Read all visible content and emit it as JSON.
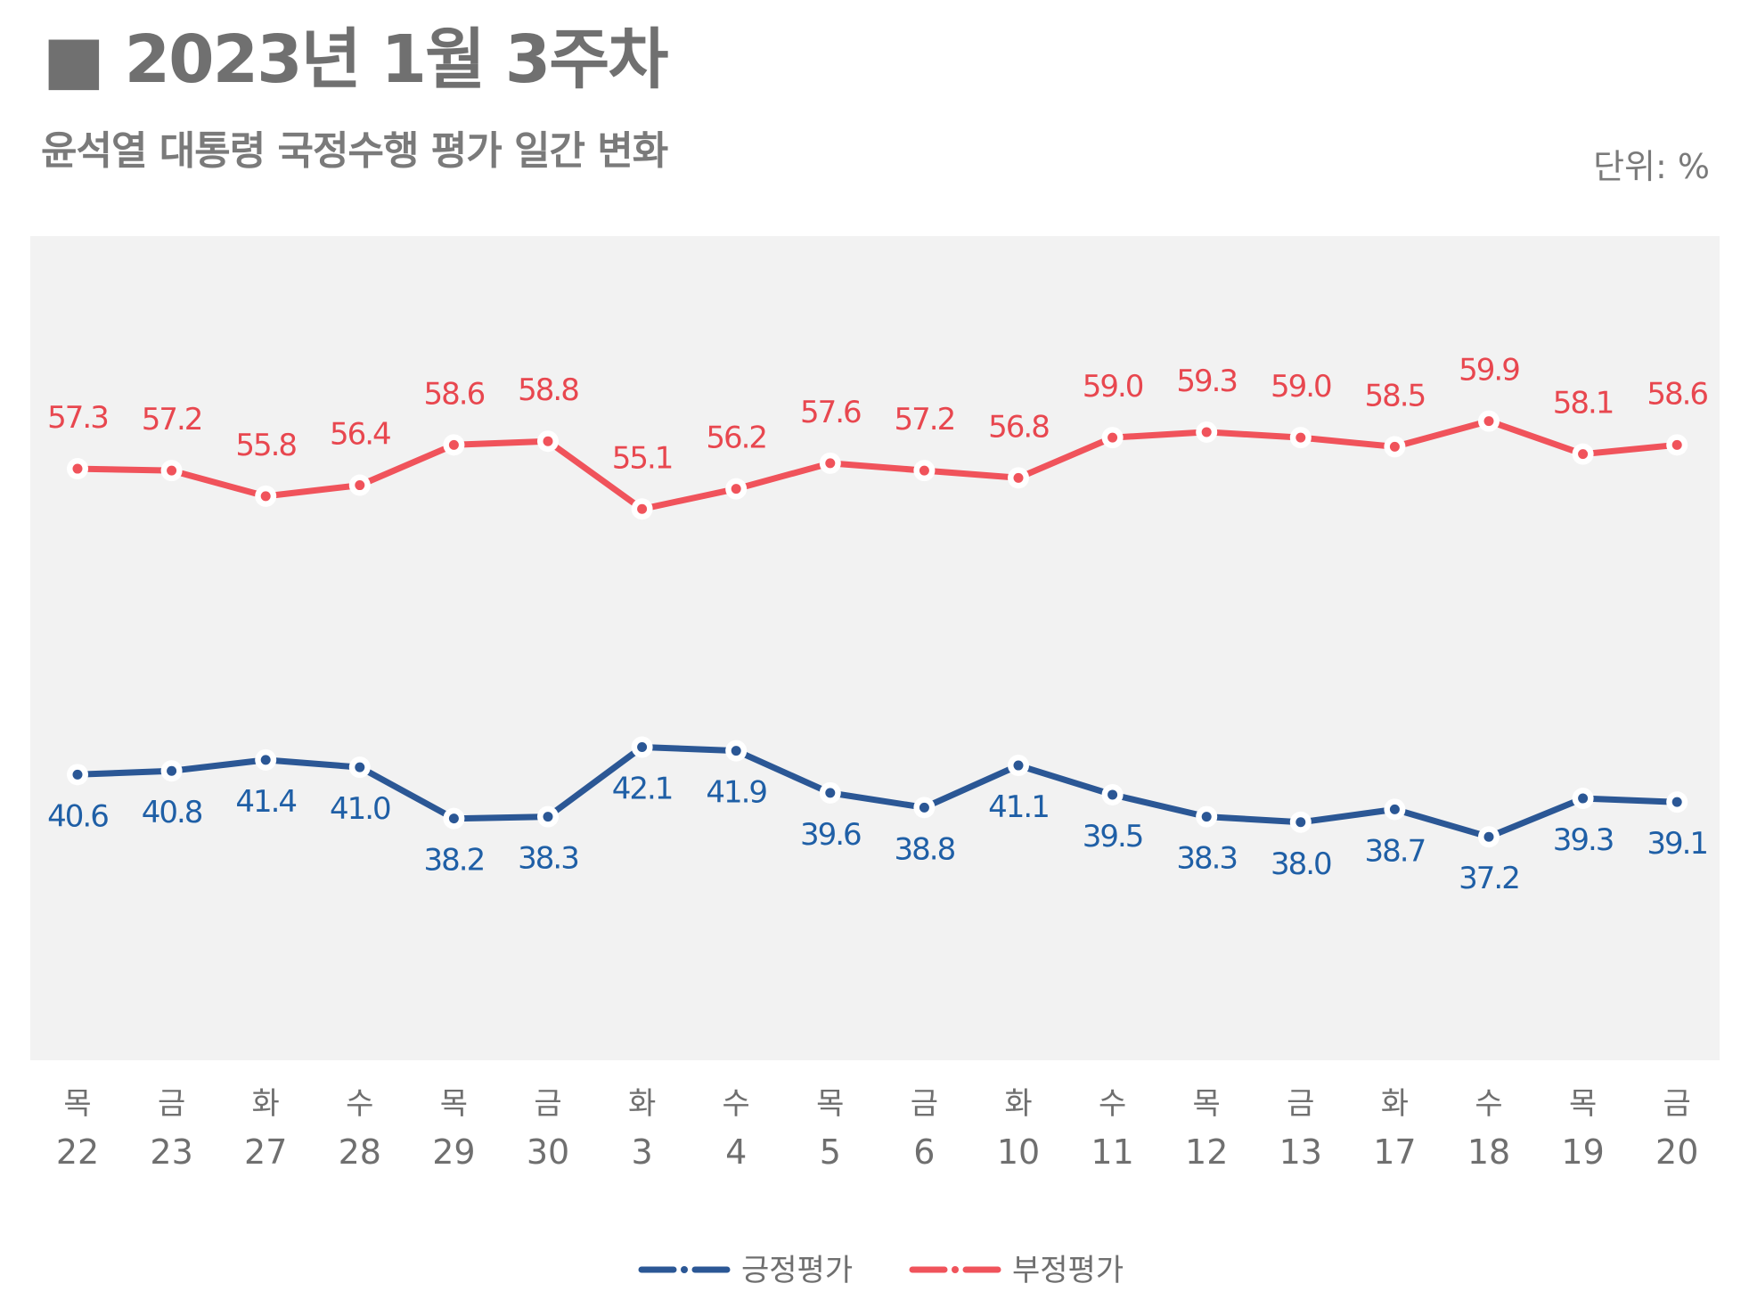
{
  "header": {
    "title": "■ 2023년 1월 3주차",
    "subtitle": "윤석열 대통령 국정수행 평가 일간 변화",
    "unit": "단위: %"
  },
  "colors": {
    "positive": "#2b5795",
    "negative": "#f0535b",
    "positive_label": "#1f5fa6",
    "negative_label": "#e8474f"
  },
  "chart_data": {
    "type": "line",
    "title": "윤석열 대통령 국정수행 평가 일간 변화",
    "ylabel": "단위: %",
    "ylim": [
      25,
      70
    ],
    "grid": false,
    "legend_position": "bottom-center",
    "categories": [
      {
        "day": "목",
        "date": "22"
      },
      {
        "day": "금",
        "date": "23"
      },
      {
        "day": "화",
        "date": "27"
      },
      {
        "day": "수",
        "date": "28"
      },
      {
        "day": "목",
        "date": "29"
      },
      {
        "day": "금",
        "date": "30"
      },
      {
        "day": "화",
        "date": "3"
      },
      {
        "day": "수",
        "date": "4"
      },
      {
        "day": "목",
        "date": "5"
      },
      {
        "day": "금",
        "date": "6"
      },
      {
        "day": "화",
        "date": "10"
      },
      {
        "day": "수",
        "date": "11"
      },
      {
        "day": "목",
        "date": "12"
      },
      {
        "day": "금",
        "date": "13"
      },
      {
        "day": "화",
        "date": "17"
      },
      {
        "day": "수",
        "date": "18"
      },
      {
        "day": "목",
        "date": "19"
      },
      {
        "day": "금",
        "date": "20"
      }
    ],
    "series": [
      {
        "name": "긍정평가",
        "color": "#2b5795",
        "values": [
          40.6,
          40.8,
          41.4,
          41.0,
          38.2,
          38.3,
          42.1,
          41.9,
          39.6,
          38.8,
          41.1,
          39.5,
          38.3,
          38.0,
          38.7,
          37.2,
          39.3,
          39.1
        ],
        "labels": [
          "40.6",
          "40.8",
          "41.4",
          "41.0",
          "38.2",
          "38.3",
          "42.1",
          "41.9",
          "39.6",
          "38.8",
          "41.1",
          "39.5",
          "38.3",
          "38.0",
          "38.7",
          "37.2",
          "39.3",
          "39.1"
        ]
      },
      {
        "name": "부정평가",
        "color": "#f0535b",
        "values": [
          57.3,
          57.2,
          55.8,
          56.4,
          58.6,
          58.8,
          55.1,
          56.2,
          57.6,
          57.2,
          56.8,
          59.0,
          59.3,
          59.0,
          58.5,
          59.9,
          58.1,
          58.6
        ],
        "labels": [
          "57.3",
          "57.2",
          "55.8",
          "56.4",
          "58.6",
          "58.8",
          "55.1",
          "56.2",
          "57.6",
          "57.2",
          "56.8",
          "59.0",
          "59.3",
          "59.0",
          "58.5",
          "59.9",
          "58.1",
          "58.6"
        ]
      }
    ]
  }
}
